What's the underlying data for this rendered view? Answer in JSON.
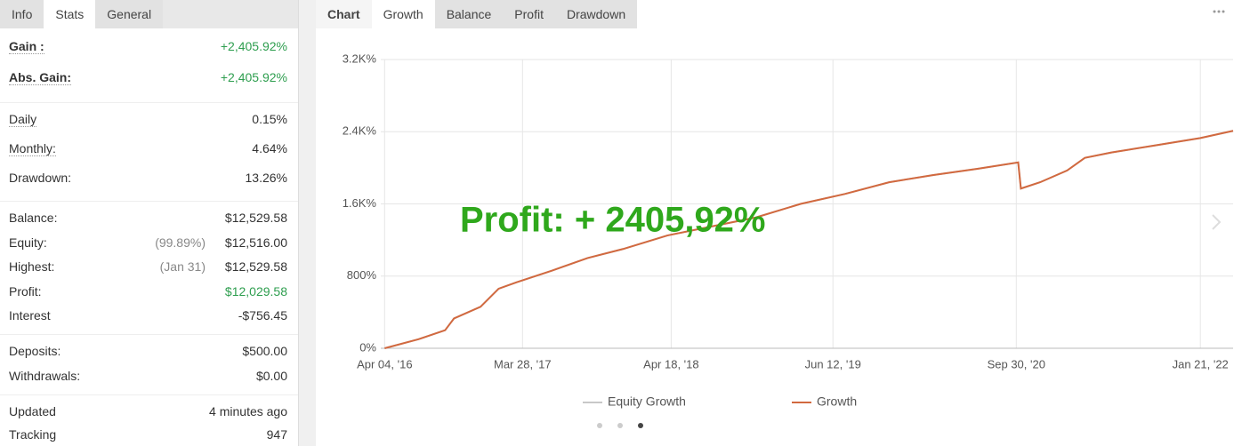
{
  "left_tabs": [
    "Info",
    "Stats",
    "General"
  ],
  "stats": [
    [
      {
        "label": "Gain :",
        "value": "+2,405.92%",
        "color": "#2e9e4f"
      },
      {
        "label": "Abs. Gain:",
        "value": "+2,405.92%",
        "color": "#2e9e4f"
      }
    ],
    [
      {
        "label": "Daily",
        "value": "0.15%"
      },
      {
        "label": "Monthly:",
        "value": "4.64%"
      },
      {
        "label": "Drawdown:",
        "value": "13.26%"
      }
    ],
    [
      {
        "label": "Balance:",
        "value": "$12,529.58"
      },
      {
        "label": "Equity:",
        "note": "(99.89%)",
        "value": "$12,516.00"
      },
      {
        "label": "Highest:",
        "note": "(Jan 31)",
        "value": "$12,529.58"
      },
      {
        "label": "Profit:",
        "value": "$12,029.58",
        "color": "#2e9e4f"
      },
      {
        "label": "Interest",
        "value": "-$756.45"
      }
    ],
    [
      {
        "label": "Deposits:",
        "value": "$500.00"
      },
      {
        "label": "Withdrawals:",
        "value": "$0.00"
      }
    ],
    [
      {
        "label": "Updated",
        "value": "4 minutes ago"
      },
      {
        "label": "Tracking",
        "value": "947"
      }
    ]
  ],
  "right_tabs": [
    "Chart",
    "Growth",
    "Balance",
    "Profit",
    "Drawdown"
  ],
  "chart_data": {
    "type": "line",
    "annotation": "Profit: + 2405,92%",
    "annotation_color": "#2fa81c",
    "x": [
      "2016-04-04",
      "2016-07-01",
      "2016-09-08",
      "2016-10-01",
      "2016-12-09",
      "2017-01-25",
      "2017-03-12",
      "2017-06-12",
      "2017-09-13",
      "2017-12-14",
      "2018-04-08",
      "2018-08-01",
      "2018-11-24",
      "2019-03-20",
      "2019-07-13",
      "2019-11-05",
      "2020-02-28",
      "2020-06-23",
      "2020-10-05",
      "2020-10-12",
      "2020-12-01",
      "2021-02-09",
      "2021-03-27",
      "2021-06-04",
      "2021-09-28",
      "2022-01-21",
      "2022-04-16"
    ],
    "series": [
      {
        "name": "Equity Growth",
        "color": "#c8c8c8",
        "values": [
          0,
          100,
          200,
          330,
          460,
          660,
          730,
          860,
          1000,
          1100,
          1250,
          1350,
          1450,
          1600,
          1710,
          1840,
          1920,
          1990,
          2060,
          1770,
          1840,
          1970,
          2110,
          2170,
          2250,
          2330,
          2410
        ]
      },
      {
        "name": "Growth",
        "color": "#d2693f",
        "values": [
          0,
          100,
          200,
          330,
          460,
          660,
          730,
          860,
          1000,
          1100,
          1250,
          1350,
          1450,
          1600,
          1710,
          1840,
          1920,
          1990,
          2060,
          1770,
          1840,
          1970,
          2110,
          2170,
          2250,
          2330,
          2410
        ]
      }
    ],
    "xlim": [
      "2016-03-25",
      "2022-04-16"
    ],
    "xticks": [
      {
        "value": "2016-04-04",
        "label": "Apr 04, '16"
      },
      {
        "value": "2017-03-28",
        "label": "Mar 28, '17"
      },
      {
        "value": "2018-04-18",
        "label": "Apr 18, '18"
      },
      {
        "value": "2019-06-12",
        "label": "Jun 12, '19"
      },
      {
        "value": "2020-09-30",
        "label": "Sep 30, '20"
      },
      {
        "value": "2022-01-21",
        "label": "Jan 21, '22"
      }
    ],
    "ylim": [
      0,
      3200
    ],
    "yticks": [
      {
        "value": 0,
        "label": "0%"
      },
      {
        "value": 800,
        "label": "800%"
      },
      {
        "value": 1600,
        "label": "1.6K%"
      },
      {
        "value": 2400,
        "label": "2.4K%"
      },
      {
        "value": 3200,
        "label": "3.2K%"
      }
    ],
    "grid": true,
    "legend": "bottom"
  }
}
